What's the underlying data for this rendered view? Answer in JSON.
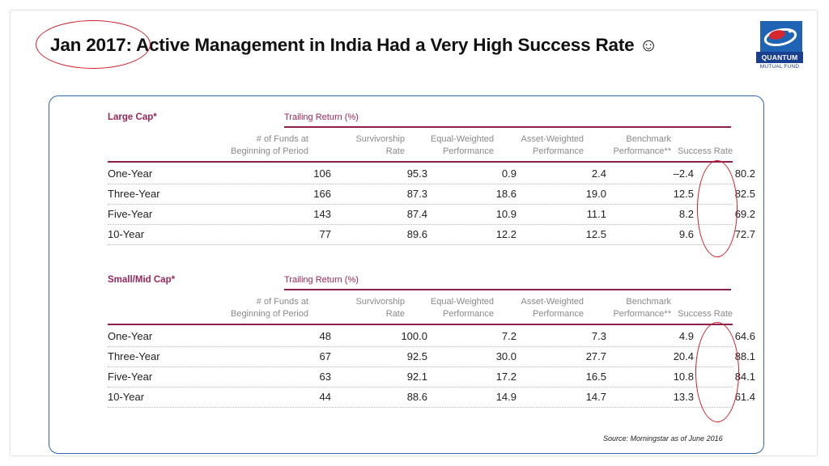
{
  "slide": {
    "title": "Jan 2017: Active Management in India Had a Very High Success Rate ☺",
    "logo": {
      "brand": "QUANTUM",
      "subtitle": "MUTUAL FUND"
    }
  },
  "table": {
    "columns": [
      "# of Funds at Beginning of Period",
      "Survivorship Rate",
      "Equal-Weighted Performance",
      "Asset-Weighted Performance",
      "Benchmark Performance**",
      "Success Rate"
    ],
    "header_lines": {
      "funds": [
        "# of Funds at",
        "Beginning of Period"
      ],
      "survivorship": [
        "Survivorship",
        "Rate"
      ],
      "equal": [
        "Equal-Weighted",
        "Performance"
      ],
      "asset": [
        "Asset-Weighted",
        "Performance"
      ],
      "benchmark": [
        "Benchmark",
        "Performance**"
      ],
      "success": [
        "",
        "Success Rate"
      ]
    },
    "trailing_label": "Trailing Return (%)",
    "sections": [
      {
        "label": "Large Cap*",
        "rows": [
          {
            "period": "One-Year",
            "funds": "106",
            "survivorship": "95.3",
            "equal": "0.9",
            "asset": "2.4",
            "benchmark": "–2.4",
            "success": "80.2"
          },
          {
            "period": "Three-Year",
            "funds": "166",
            "survivorship": "87.3",
            "equal": "18.6",
            "asset": "19.0",
            "benchmark": "12.5",
            "success": "82.5"
          },
          {
            "period": "Five-Year",
            "funds": "143",
            "survivorship": "87.4",
            "equal": "10.9",
            "asset": "11.1",
            "benchmark": "8.2",
            "success": "69.2"
          },
          {
            "period": "10-Year",
            "funds": "77",
            "survivorship": "89.6",
            "equal": "12.2",
            "asset": "12.5",
            "benchmark": "9.6",
            "success": "72.7"
          }
        ]
      },
      {
        "label": "Small/Mid Cap*",
        "rows": [
          {
            "period": "One-Year",
            "funds": "48",
            "survivorship": "100.0",
            "equal": "7.2",
            "asset": "7.3",
            "benchmark": "4.9",
            "success": "64.6"
          },
          {
            "period": "Three-Year",
            "funds": "67",
            "survivorship": "92.5",
            "equal": "30.0",
            "asset": "27.7",
            "benchmark": "20.4",
            "success": "88.1"
          },
          {
            "period": "Five-Year",
            "funds": "63",
            "survivorship": "92.1",
            "equal": "17.2",
            "asset": "16.5",
            "benchmark": "10.8",
            "success": "84.1"
          },
          {
            "period": "10-Year",
            "funds": "44",
            "survivorship": "88.6",
            "equal": "14.9",
            "asset": "14.7",
            "benchmark": "13.3",
            "success": "61.4"
          }
        ]
      }
    ]
  },
  "source": "Source:  Morningstar as of  June 2016",
  "colors": {
    "section_accent": "#9c2458",
    "rule": "#8c1f4e",
    "panel_border": "#2c66b5",
    "highlight_ellipse": "#d21e2b",
    "logo_blue": "#1e63b4"
  }
}
